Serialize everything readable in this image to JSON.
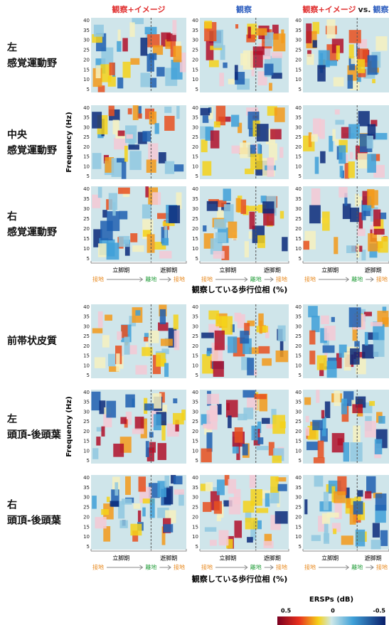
{
  "column_titles": [
    "観察+イメージ",
    "観察",
    [
      "観察+イメージ",
      "vs.",
      "観察"
    ]
  ],
  "y_axis": {
    "label": "Frequency (Hz)",
    "ticks": [
      40,
      35,
      30,
      25,
      20,
      15,
      10,
      5
    ]
  },
  "rows": [
    [
      "左",
      "感覚運動野"
    ],
    [
      "中央",
      "感覚運動野"
    ],
    [
      "右",
      "感覚運動野"
    ],
    [
      "前帯状皮質"
    ],
    [
      "左",
      "頭頂-後頭葉"
    ],
    [
      "右",
      "頭頂-後頭葉"
    ]
  ],
  "phase_axis": {
    "stance": "立脚期",
    "swing": "遊脚期",
    "contact": "接地",
    "toe_off": "離地",
    "label": "観察している歩行位相 (%)"
  },
  "colorbar": {
    "title": "ERSPs (dB)",
    "ticks": [
      0.5,
      0,
      -0.5
    ]
  }
}
